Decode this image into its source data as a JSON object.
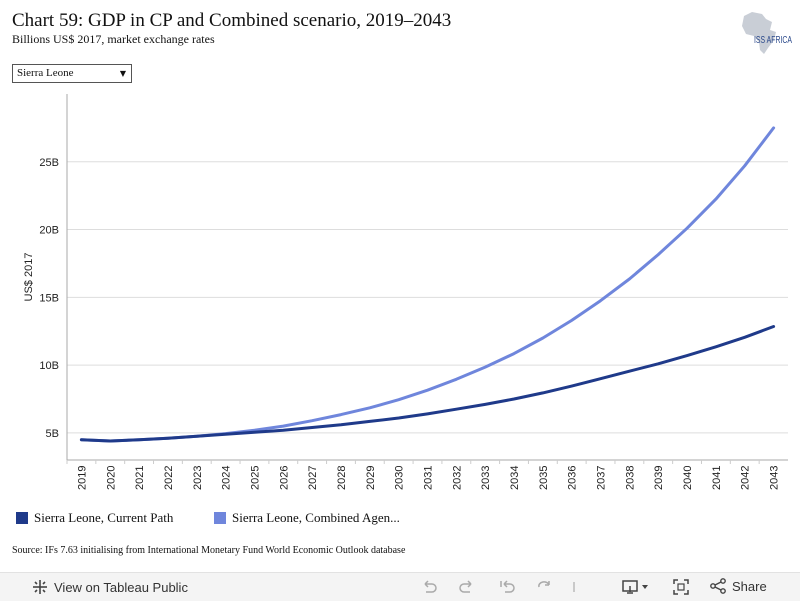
{
  "header": {
    "title": "Chart 59: GDP in CP and Combined scenario, 2019–2043",
    "subtitle": "Billions US$ 2017, market exchange rates",
    "logo_text": "ISS AFRICA"
  },
  "filter": {
    "selected": "Sierra Leone"
  },
  "chart_data": {
    "type": "line",
    "x": [
      2019,
      2020,
      2021,
      2022,
      2023,
      2024,
      2025,
      2026,
      2027,
      2028,
      2029,
      2030,
      2031,
      2032,
      2033,
      2034,
      2035,
      2036,
      2037,
      2038,
      2039,
      2040,
      2041,
      2042,
      2043
    ],
    "series": [
      {
        "name": "Sierra Leone, Current Path",
        "color": "#1f3a8a",
        "values": [
          4.5,
          4.4,
          4.5,
          4.6,
          4.75,
          4.9,
          5.05,
          5.2,
          5.4,
          5.6,
          5.85,
          6.1,
          6.4,
          6.75,
          7.1,
          7.5,
          7.95,
          8.45,
          9.0,
          9.55,
          10.1,
          10.7,
          11.35,
          12.05,
          12.85
        ]
      },
      {
        "name": "Sierra Leone, Combined Agen...",
        "color": "#6f86dc",
        "values": [
          4.5,
          4.4,
          4.5,
          4.6,
          4.75,
          4.95,
          5.2,
          5.5,
          5.9,
          6.35,
          6.85,
          7.45,
          8.15,
          8.95,
          9.85,
          10.85,
          12.0,
          13.3,
          14.75,
          16.35,
          18.15,
          20.1,
          22.25,
          24.7,
          27.5
        ]
      }
    ],
    "ylabel": "US$ 2017",
    "xlabel": "",
    "yticks": [
      5,
      10,
      15,
      20,
      25
    ],
    "ytick_labels": [
      "5B",
      "10B",
      "15B",
      "20B",
      "25B"
    ],
    "ylim": [
      3,
      30
    ],
    "grid": true,
    "legend_position": "bottom-left"
  },
  "source": "Source: IFs 7.63 initialising from International Monetary Fund World Economic Outlook database",
  "footer": {
    "view_label": "View on Tableau Public",
    "share_label": "Share"
  },
  "colors": {
    "current_path": "#1f3a8a",
    "combined": "#6f86dc",
    "grid": "#dddddd"
  }
}
